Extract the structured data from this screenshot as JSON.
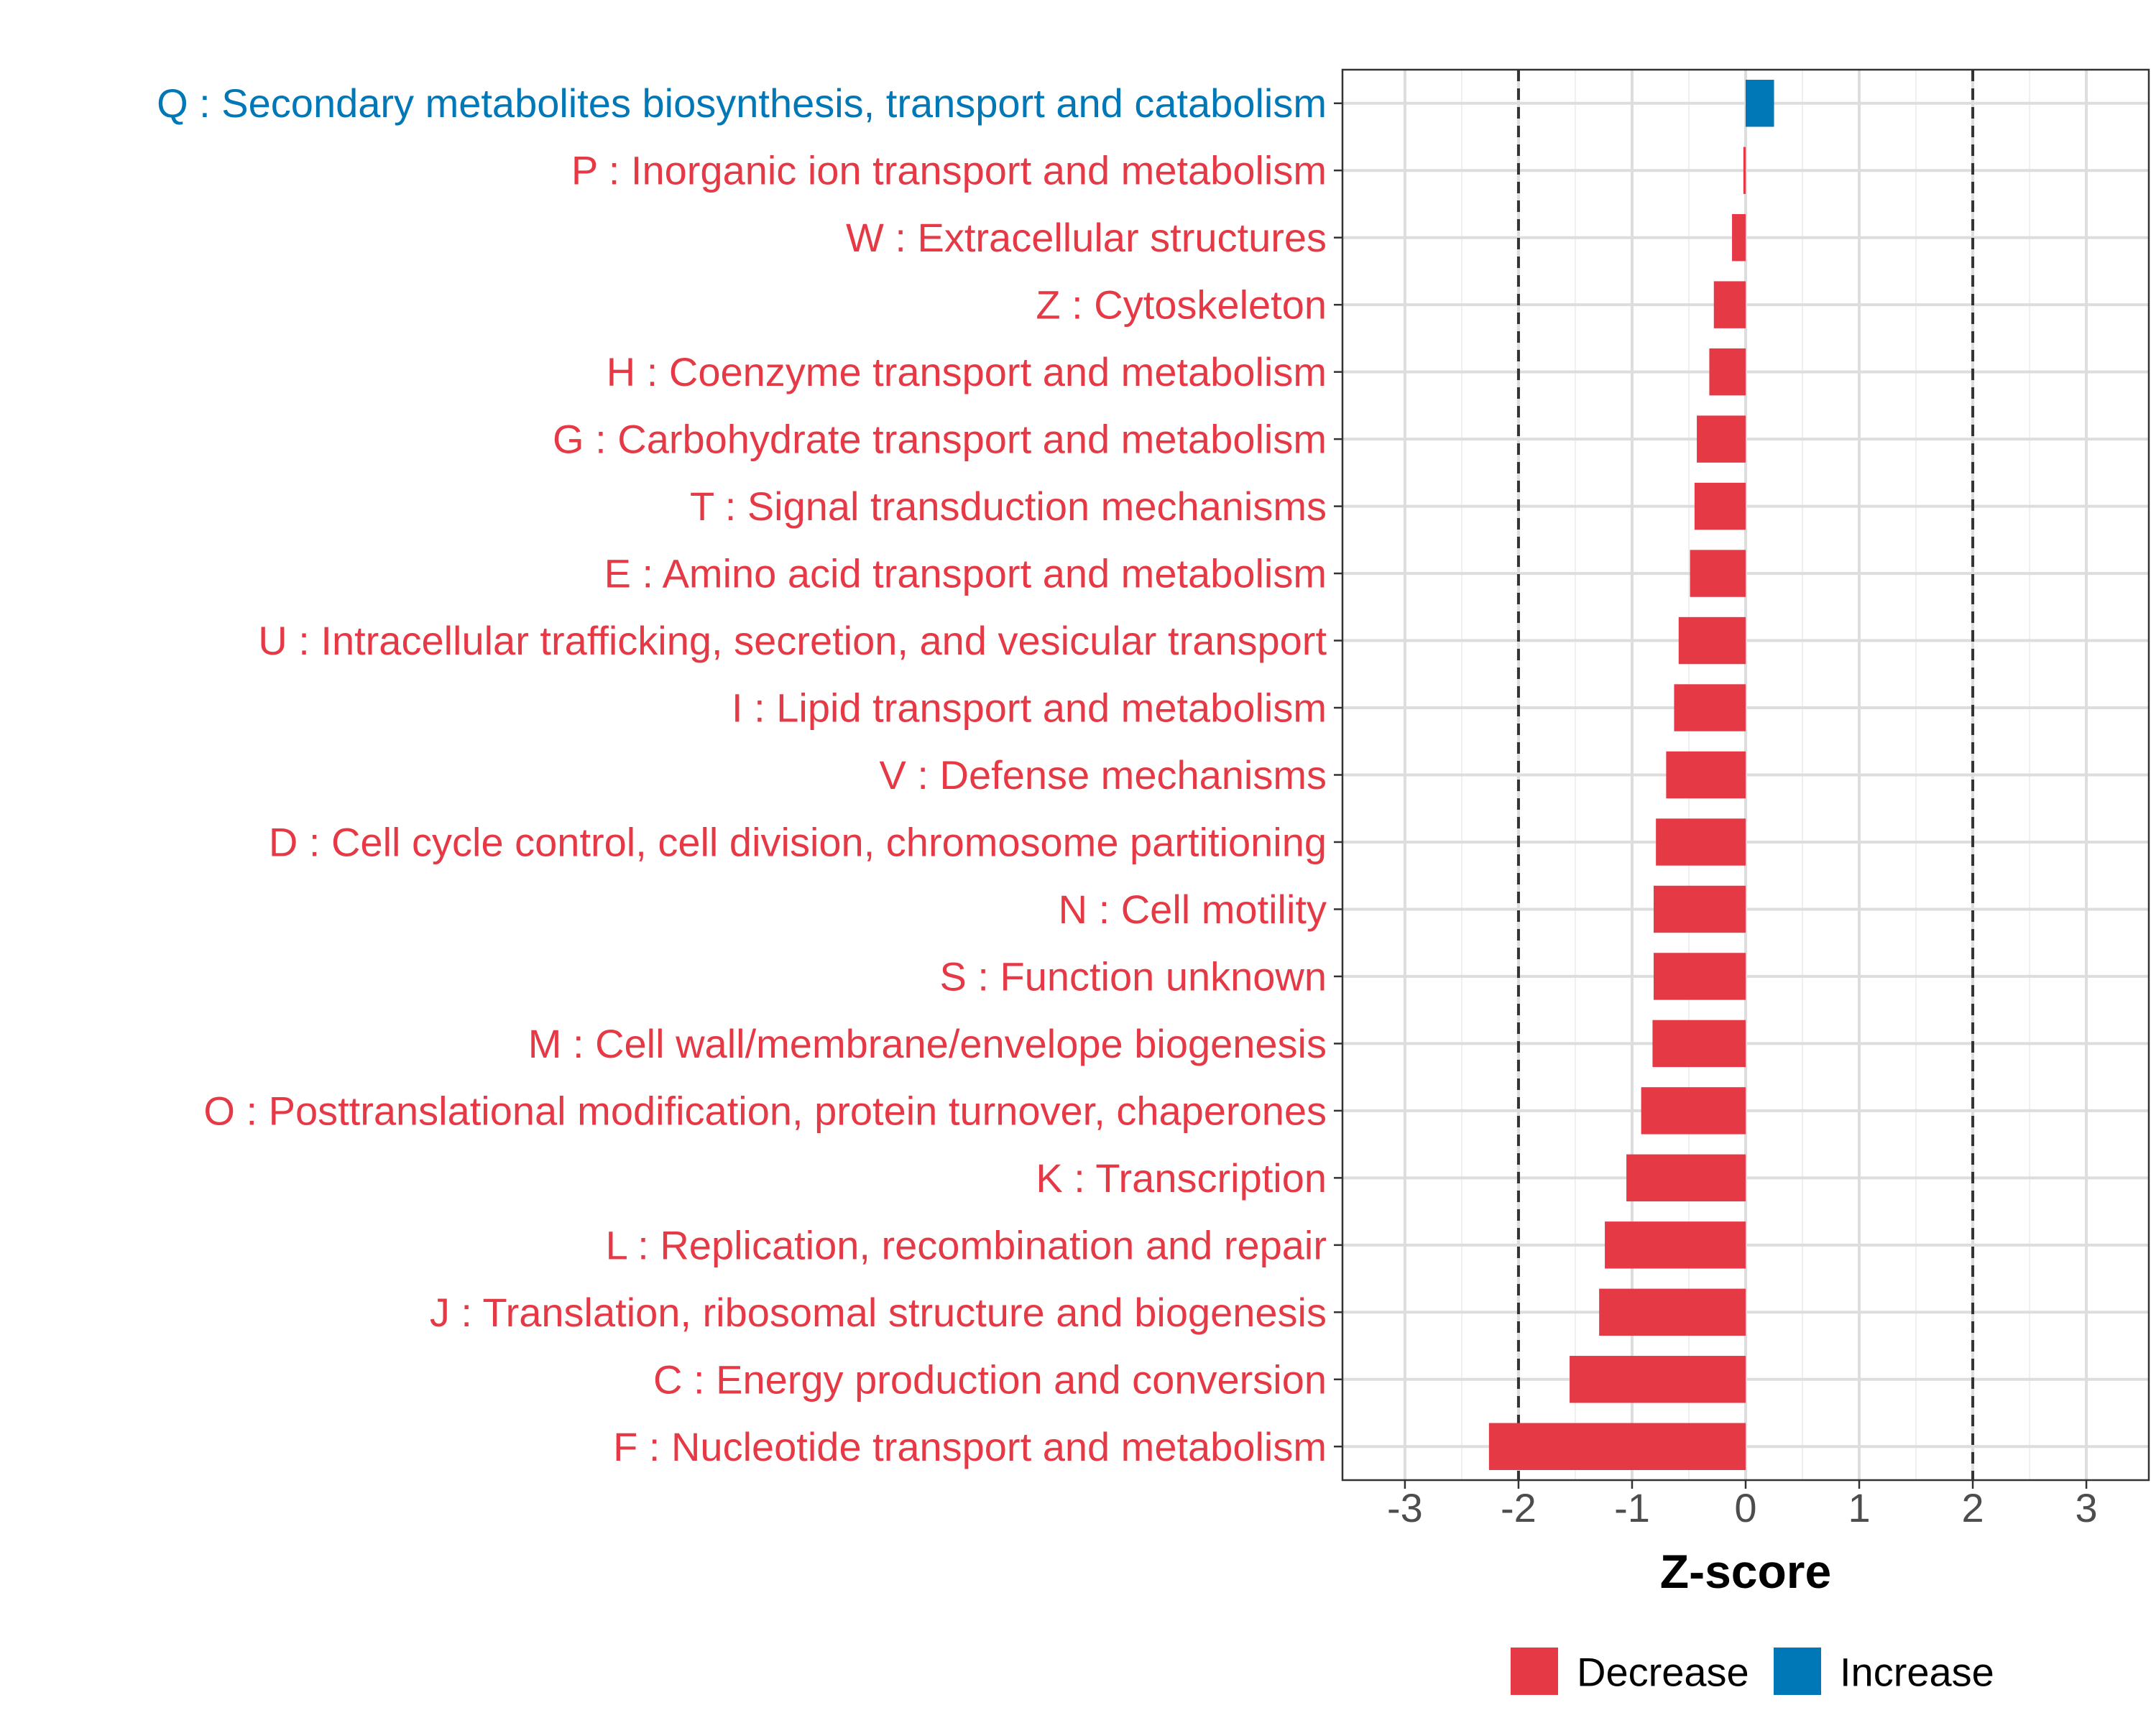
{
  "chart_data": {
    "type": "bar",
    "orientation": "horizontal",
    "xlabel": "Z-score",
    "ylabel": "",
    "xlim": [
      -3.55,
      3.55
    ],
    "xticks": [
      "-3",
      "-2",
      "-1",
      "0",
      "1",
      "2",
      "3"
    ],
    "xtick_values": [
      -3,
      -2,
      -1,
      0,
      1,
      2,
      3
    ],
    "reference_lines": [
      -2,
      2
    ],
    "grid": true,
    "legend_position": "bottom",
    "colors": {
      "Decrease": "#E63946",
      "Increase": "#0077B6",
      "axis_text": "#4d4d4d",
      "grid": "#dddddd",
      "panel_border": "#333333",
      "reference_line": "#333333"
    },
    "legend": [
      {
        "label": "Decrease",
        "color": "#E63946"
      },
      {
        "label": "Increase",
        "color": "#0077B6"
      }
    ],
    "categories": [
      "Q : Secondary metabolites biosynthesis, transport and catabolism",
      "P : Inorganic ion transport and metabolism",
      "W : Extracellular structures",
      "Z : Cytoskeleton",
      "H : Coenzyme transport and metabolism",
      "G : Carbohydrate transport and metabolism",
      "T : Signal transduction mechanisms",
      "E : Amino acid transport and metabolism",
      "U : Intracellular trafficking, secretion, and vesicular transport",
      "I : Lipid transport and metabolism",
      "V : Defense mechanisms",
      "D : Cell cycle control, cell division, chromosome partitioning",
      "N : Cell motility",
      "S : Function unknown",
      "M : Cell wall/membrane/envelope biogenesis",
      "O : Posttranslational modification, protein turnover, chaperones",
      "K : Transcription",
      "L : Replication, recombination and repair",
      "J : Translation, ribosomal structure and biogenesis",
      "C : Energy production and conversion",
      "F : Nucleotide transport and metabolism"
    ],
    "values": [
      0.25,
      -0.02,
      -0.12,
      -0.28,
      -0.32,
      -0.43,
      -0.45,
      -0.49,
      -0.59,
      -0.63,
      -0.7,
      -0.79,
      -0.81,
      -0.81,
      -0.82,
      -0.92,
      -1.05,
      -1.24,
      -1.29,
      -1.55,
      -2.26
    ],
    "direction": [
      "Increase",
      "Decrease",
      "Decrease",
      "Decrease",
      "Decrease",
      "Decrease",
      "Decrease",
      "Decrease",
      "Decrease",
      "Decrease",
      "Decrease",
      "Decrease",
      "Decrease",
      "Decrease",
      "Decrease",
      "Decrease",
      "Decrease",
      "Decrease",
      "Decrease",
      "Decrease",
      "Decrease"
    ]
  }
}
